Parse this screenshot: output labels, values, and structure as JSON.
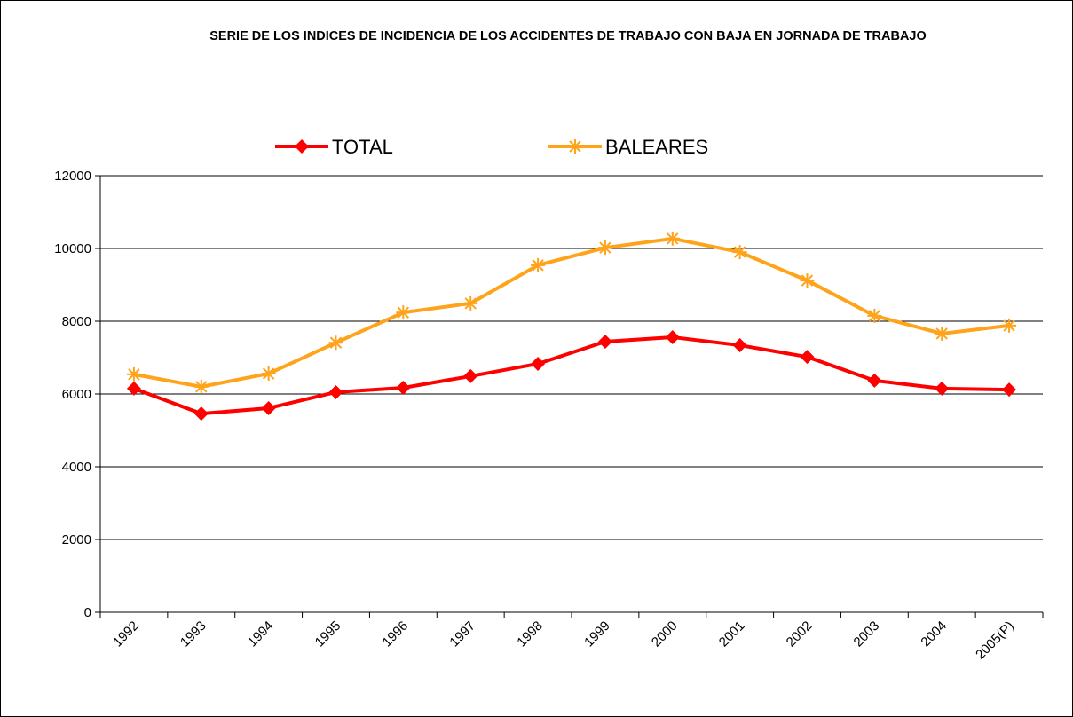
{
  "chart_data": {
    "type": "line",
    "title": "SERIE DE LOS INDICES DE INCIDENCIA DE LOS ACCIDENTES DE TRABAJO CON BAJA EN JORNADA DE TRABAJO",
    "categories": [
      "1992",
      "1993",
      "1994",
      "1995",
      "1996",
      "1997",
      "1998",
      "1999",
      "2000",
      "2001",
      "2002",
      "2003",
      "2004",
      "2005(P)"
    ],
    "series": [
      {
        "name": "TOTAL",
        "color": "#ff0000",
        "marker": "diamond",
        "values": [
          6150,
          5460,
          5610,
          6050,
          6170,
          6490,
          6830,
          7440,
          7560,
          7340,
          7020,
          6370,
          6150,
          6120
        ]
      },
      {
        "name": "BALEARES",
        "color": "#ffa31a",
        "marker": "asterisk",
        "values": [
          6540,
          6200,
          6560,
          7410,
          8240,
          8490,
          9540,
          10020,
          10270,
          9900,
          9120,
          8150,
          7660,
          7880
        ]
      }
    ],
    "ylim": [
      0,
      12000
    ],
    "yticks": [
      0,
      2000,
      4000,
      6000,
      8000,
      10000,
      12000
    ],
    "grid": true,
    "legend": "top"
  }
}
